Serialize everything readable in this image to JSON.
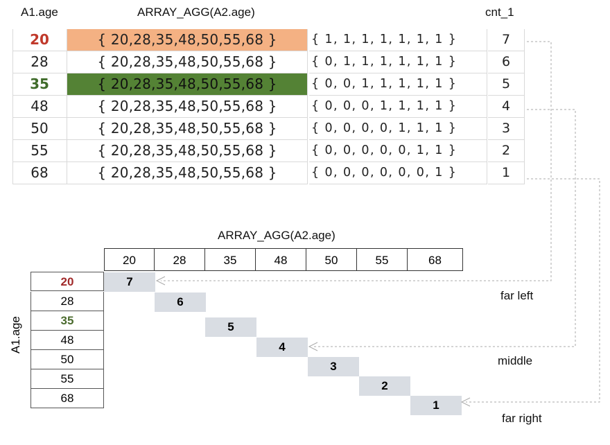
{
  "top": {
    "headers": {
      "age": "A1.age",
      "array": "ARRAY_AGG(A2.age)",
      "count": "cnt_1"
    },
    "rows": [
      {
        "age": "20",
        "array": "{ 20,28,35,48,50,55,68 }",
        "vector": "{ 1,  1,  1,  1,  1, 1,  1  }",
        "count": "7"
      },
      {
        "age": "28",
        "array": "{ 20,28,35,48,50,55,68 }",
        "vector": "{ 0,  1,  1,  1,  1, 1, 1 }",
        "count": "6"
      },
      {
        "age": "35",
        "array": "{ 20,28,35,48,50,55,68 }",
        "vector": "{ 0,  0,  1,  1,  1,  1,  1 }",
        "count": "5"
      },
      {
        "age": "48",
        "array": "{ 20,28,35,48,50,55,68 }",
        "vector": "{ 0,  0,  0,  1,  1,  1,  1 }",
        "count": "4"
      },
      {
        "age": "50",
        "array": "{ 20,28,35,48,50,55,68 }",
        "vector": "{ 0,  0,  0,  0,  1,  1,  1 }",
        "count": "3"
      },
      {
        "age": "55",
        "array": "{ 20,28,35,48,50,55,68 }",
        "vector": "{ 0,  0,  0,  0,  0,  1,  1 }",
        "count": "2"
      },
      {
        "age": "68",
        "array": "{ 20,28,35,48,50,55,68 }",
        "vector": "{ 0,  0,  0,  0,  0,  0,  1 }",
        "count": "1"
      }
    ]
  },
  "bottom": {
    "column_title": "ARRAY_AGG(A2.age)",
    "row_title": "A1.age",
    "columns": [
      "20",
      "28",
      "35",
      "48",
      "50",
      "55",
      "68"
    ],
    "rows": [
      "20",
      "28",
      "35",
      "48",
      "50",
      "55",
      "68"
    ],
    "diagonal": [
      "7",
      "6",
      "5",
      "4",
      "3",
      "2",
      "1"
    ],
    "notes": {
      "far_left": "far left",
      "middle": "middle",
      "far_right": "far right"
    }
  },
  "colors": {
    "highlight_orange": "#f4b183",
    "highlight_green": "#548235",
    "age_red": "#c0392b",
    "age_green": "#3f6b2a",
    "bottom_red": "#a12b2b",
    "bottom_green": "#4b6b2e",
    "diagonal_fill": "#d9dde3",
    "connector": "#aaaaaa"
  }
}
